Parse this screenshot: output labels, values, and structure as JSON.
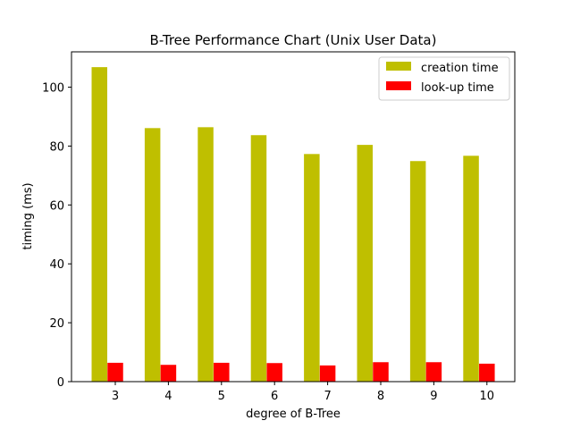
{
  "chart_data": {
    "type": "bar",
    "title": "B-Tree Performance Chart (Unix User Data)",
    "xlabel": "degree of B-Tree",
    "ylabel": "timing (ms)",
    "categories": [
      "3",
      "4",
      "5",
      "6",
      "7",
      "8",
      "9",
      "10"
    ],
    "series": [
      {
        "name": "creation time",
        "color": "#bfbf00",
        "values": [
          106.8,
          86.1,
          86.4,
          83.7,
          77.3,
          80.4,
          74.9,
          76.7
        ]
      },
      {
        "name": "look-up time",
        "color": "#ff0000",
        "values": [
          6.4,
          5.7,
          6.4,
          6.3,
          5.5,
          6.6,
          6.6,
          6.1
        ]
      }
    ],
    "ylim": [
      0,
      112
    ],
    "yticks": [
      0,
      20,
      40,
      60,
      80,
      100
    ],
    "grid": false,
    "legend": "top-right"
  }
}
